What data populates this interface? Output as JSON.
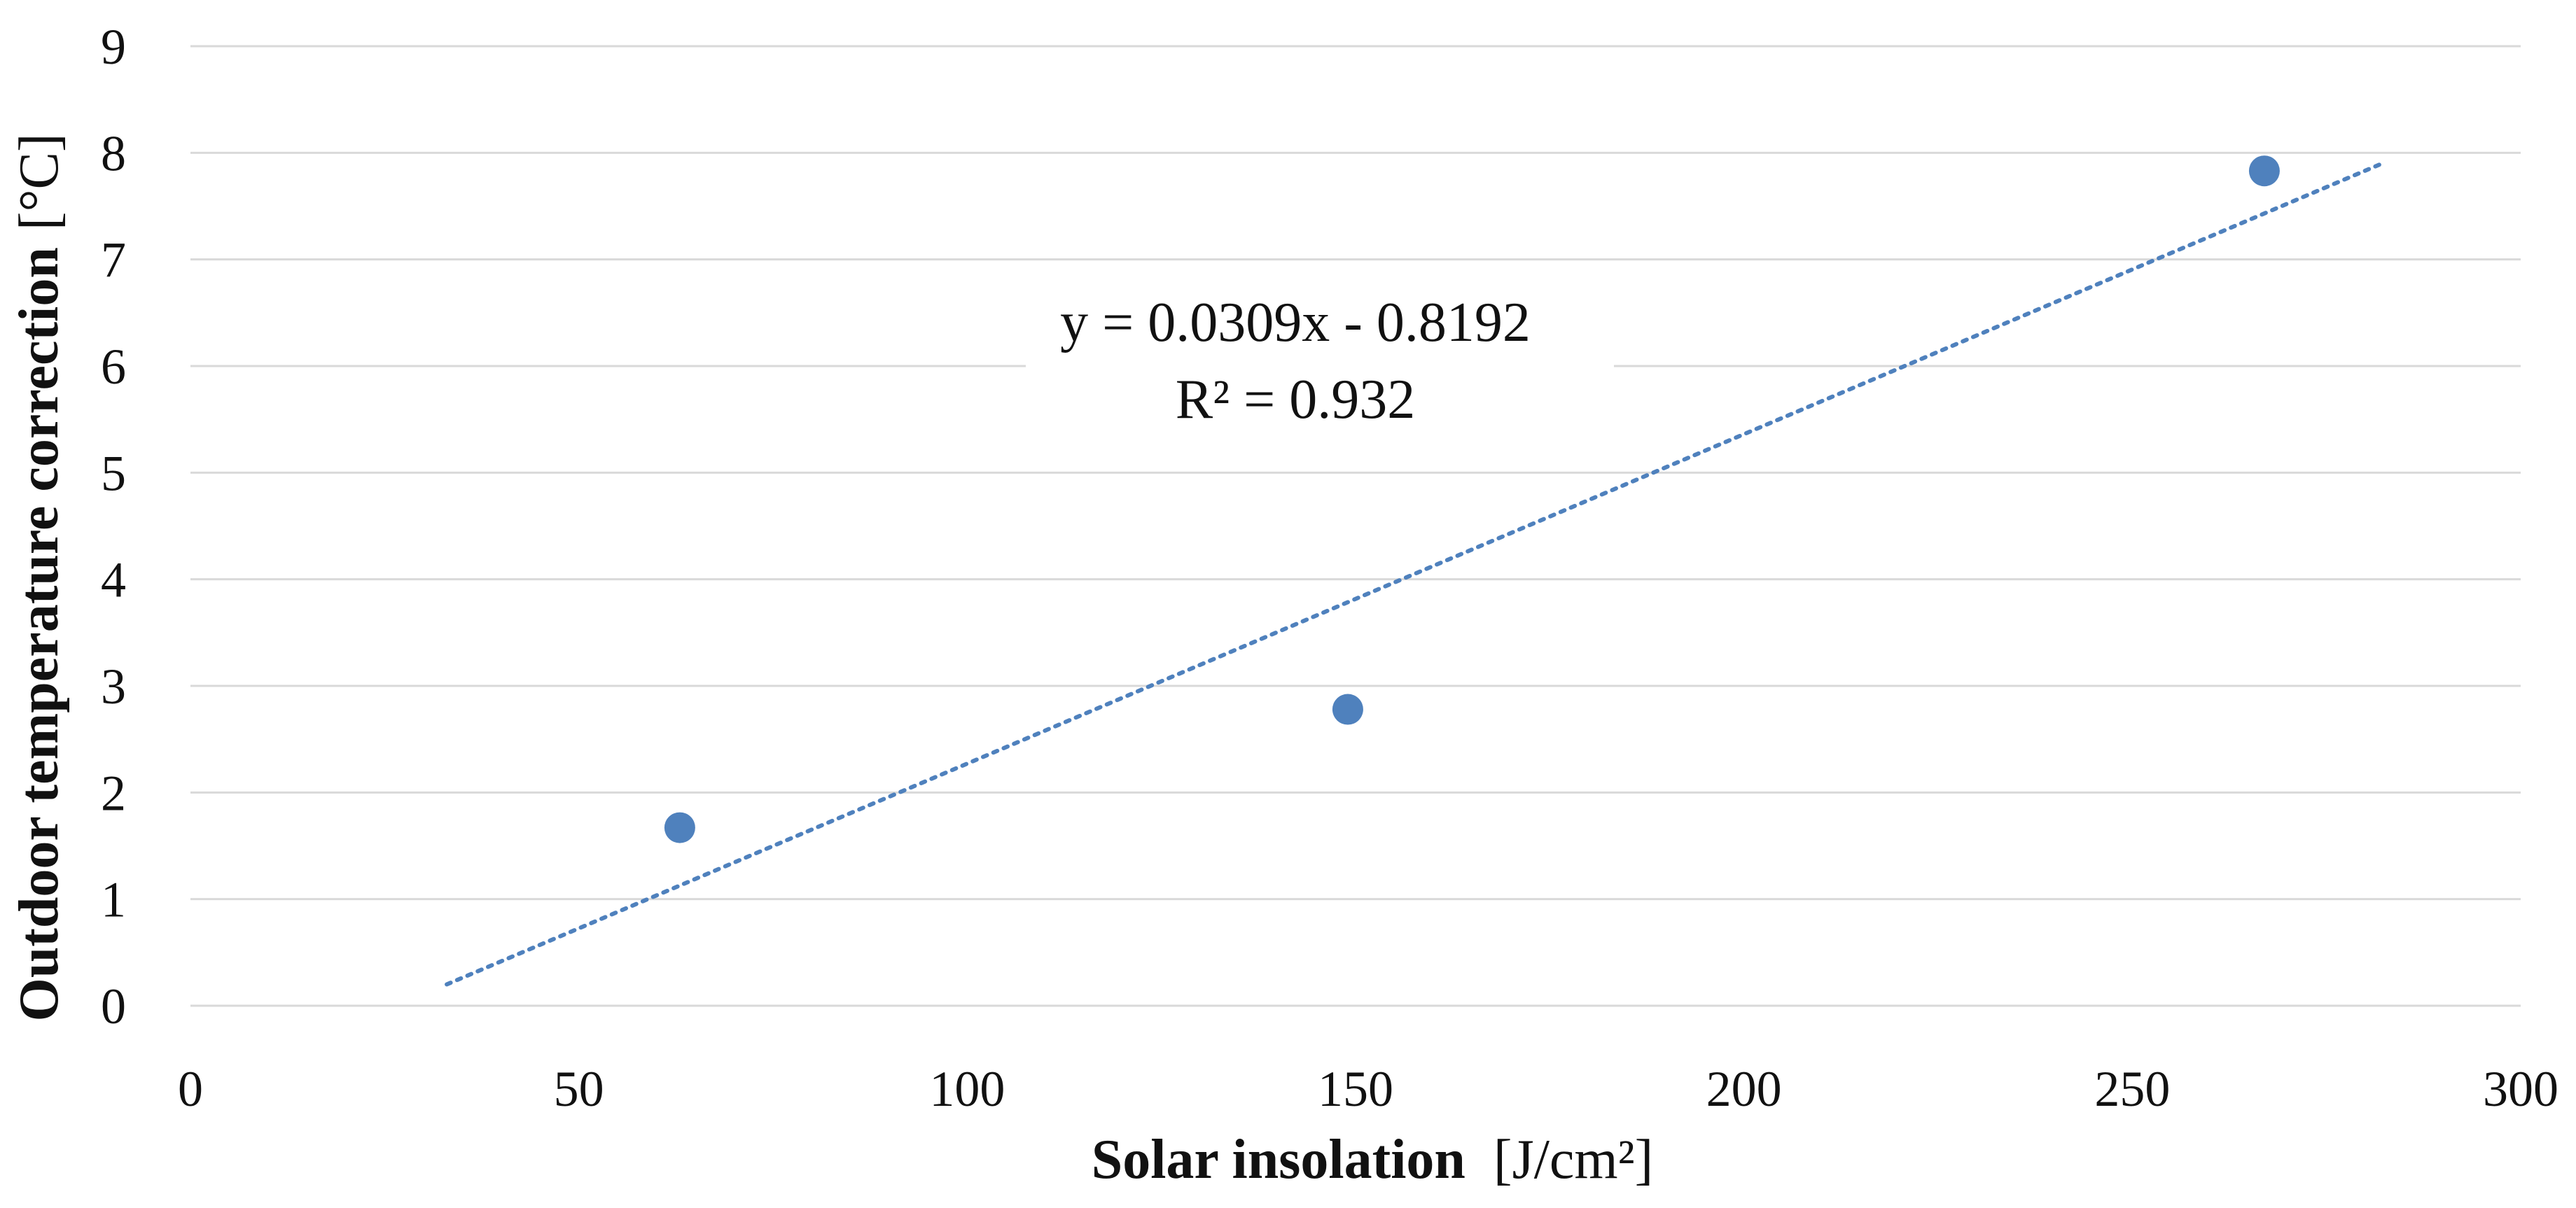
{
  "chart_data": {
    "type": "scatter",
    "title": "",
    "xlabel": "Solar insolation",
    "xlabel_unit": "[J/cm²]",
    "ylabel": "Outdoor temperature correction",
    "ylabel_unit": "[°C]",
    "xlim": [
      0,
      300
    ],
    "ylim": [
      0,
      9
    ],
    "x_ticks": [
      0,
      50,
      100,
      150,
      200,
      250,
      300
    ],
    "y_ticks": [
      0,
      1,
      2,
      3,
      4,
      5,
      6,
      7,
      8,
      9
    ],
    "grid": true,
    "series": [
      {
        "name": "Outdoor temperature correction",
        "points": [
          {
            "x": 63,
            "y": 1.67
          },
          {
            "x": 149,
            "y": 2.78
          },
          {
            "x": 267,
            "y": 7.83
          }
        ]
      }
    ],
    "trendline": {
      "type": "linear",
      "slope": 0.0309,
      "intercept": -0.8192,
      "x_start": 33,
      "x_end": 282,
      "equation": "y = 0.0309x - 0.8192",
      "r_squared": "R² = 0.932"
    },
    "colors": {
      "marker": "#4f81bd",
      "trendline": "#4f81bd"
    }
  }
}
